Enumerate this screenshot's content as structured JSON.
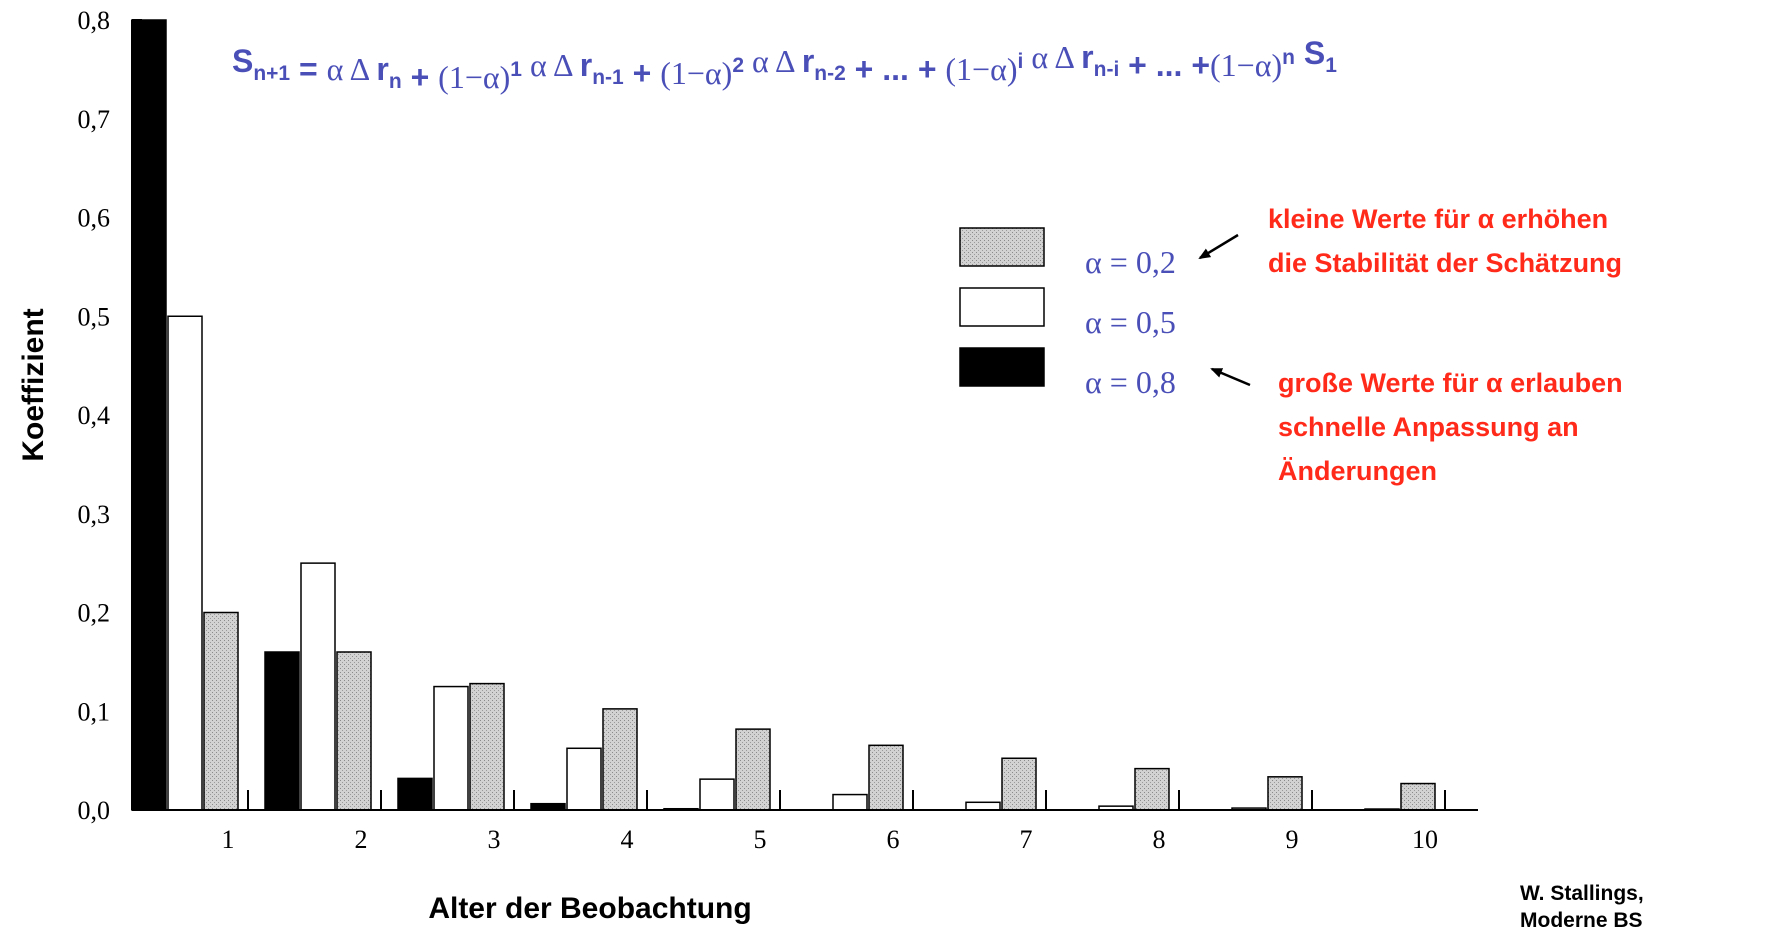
{
  "chart_data": {
    "type": "bar",
    "title": "",
    "xlabel": "Alter der Beobachtung",
    "ylabel": "Koeffizient",
    "categories": [
      "1",
      "2",
      "3",
      "4",
      "5",
      "6",
      "7",
      "8",
      "9",
      "10"
    ],
    "ylim": [
      0,
      0.8
    ],
    "yticks": [
      "0,0",
      "0,1",
      "0,2",
      "0,3",
      "0,4",
      "0,5",
      "0,6",
      "0,7",
      "0,8"
    ],
    "grid": false,
    "legend_position": "top-right",
    "series": [
      {
        "name": "α = 0,8",
        "color": "#000000",
        "values": [
          0.8,
          0.16,
          0.032,
          0.0064,
          0.00128,
          0.000256,
          5.12e-05,
          1e-05,
          2e-06,
          4e-07
        ]
      },
      {
        "name": "α = 0,5",
        "color": "#ffffff",
        "values": [
          0.5,
          0.25,
          0.125,
          0.0625,
          0.03125,
          0.015625,
          0.0078,
          0.0039,
          0.00195,
          0.00098
        ]
      },
      {
        "name": "α = 0,2",
        "color": "#c8c8c8",
        "values": [
          0.2,
          0.16,
          0.128,
          0.1024,
          0.0819,
          0.0655,
          0.0524,
          0.0419,
          0.0336,
          0.0268
        ]
      }
    ],
    "legend_order": [
      2,
      1,
      0
    ],
    "annotations": [
      {
        "lines": [
          "kleine Werte für α erhöhen",
          "die Stabilität der Schätzung"
        ],
        "points_to": "α = 0,2",
        "color": "#ff2a1a"
      },
      {
        "lines": [
          "große Werte für α erlauben",
          "schnelle Anpassung an",
          "Änderungen"
        ],
        "points_to": "α = 0,8",
        "color": "#ff2a1a"
      }
    ],
    "formula": {
      "parts": [
        {
          "t": "S",
          "s": "b"
        },
        {
          "t": "n+1",
          "s": "sub"
        },
        {
          "t": " = ",
          "s": "b"
        },
        {
          "t": "α Δ ",
          "s": "serif"
        },
        {
          "t": "r",
          "s": "b"
        },
        {
          "t": "n",
          "s": "sub"
        },
        {
          "t": " + ",
          "s": "b"
        },
        {
          "t": "(1−α)",
          "s": "serif"
        },
        {
          "t": "1",
          "s": "sup"
        },
        {
          "t": " α Δ ",
          "s": "serif"
        },
        {
          "t": "r",
          "s": "b"
        },
        {
          "t": "n-1",
          "s": "sub"
        },
        {
          "t": " +  ",
          "s": "b"
        },
        {
          "t": "(1−α)",
          "s": "serif"
        },
        {
          "t": "2",
          "s": "sup"
        },
        {
          "t": " α Δ ",
          "s": "serif"
        },
        {
          "t": "r",
          "s": "b"
        },
        {
          "t": "n-2",
          "s": "sub"
        },
        {
          "t": "  + ... + ",
          "s": "b"
        },
        {
          "t": "(1−α)",
          "s": "serif"
        },
        {
          "t": "i",
          "s": "sup"
        },
        {
          "t": " α Δ ",
          "s": "serif"
        },
        {
          "t": "r",
          "s": "b"
        },
        {
          "t": "n-i",
          "s": "sub"
        },
        {
          "t": " + ... +",
          "s": "b"
        },
        {
          "t": "(1−α)",
          "s": "serif"
        },
        {
          "t": "n",
          "s": "sup"
        },
        {
          "t": " S",
          "s": "b"
        },
        {
          "t": "1",
          "s": "sub"
        }
      ],
      "color": "#4a4fb8"
    },
    "credit": [
      "W. Stallings,",
      "Moderne BS"
    ]
  }
}
